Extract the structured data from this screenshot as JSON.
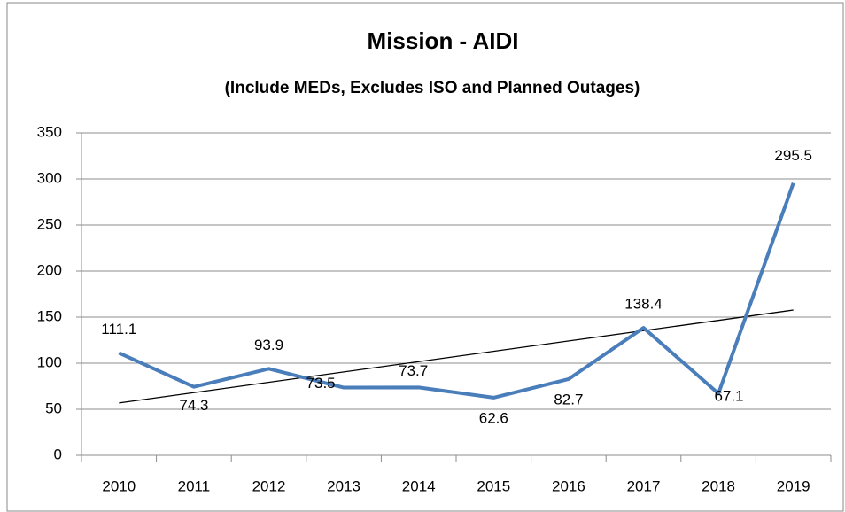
{
  "chart_data": {
    "type": "line",
    "title": "Mission  - AIDI",
    "subtitle": "(Include MEDs, Excludes ISO and Planned Outages)",
    "categories": [
      "2010",
      "2011",
      "2012",
      "2013",
      "2014",
      "2015",
      "2016",
      "2017",
      "2018",
      "2019"
    ],
    "series": [
      {
        "name": "AIDI",
        "color": "#4a7ebb",
        "values": [
          111.1,
          74.3,
          93.9,
          73.5,
          73.7,
          62.6,
          82.7,
          138.4,
          67.1,
          295.5
        ]
      }
    ],
    "ylim": [
      0,
      350
    ],
    "yticks": [
      0,
      50,
      100,
      150,
      200,
      250,
      300,
      350
    ],
    "grid": true,
    "trendline": "linear"
  }
}
